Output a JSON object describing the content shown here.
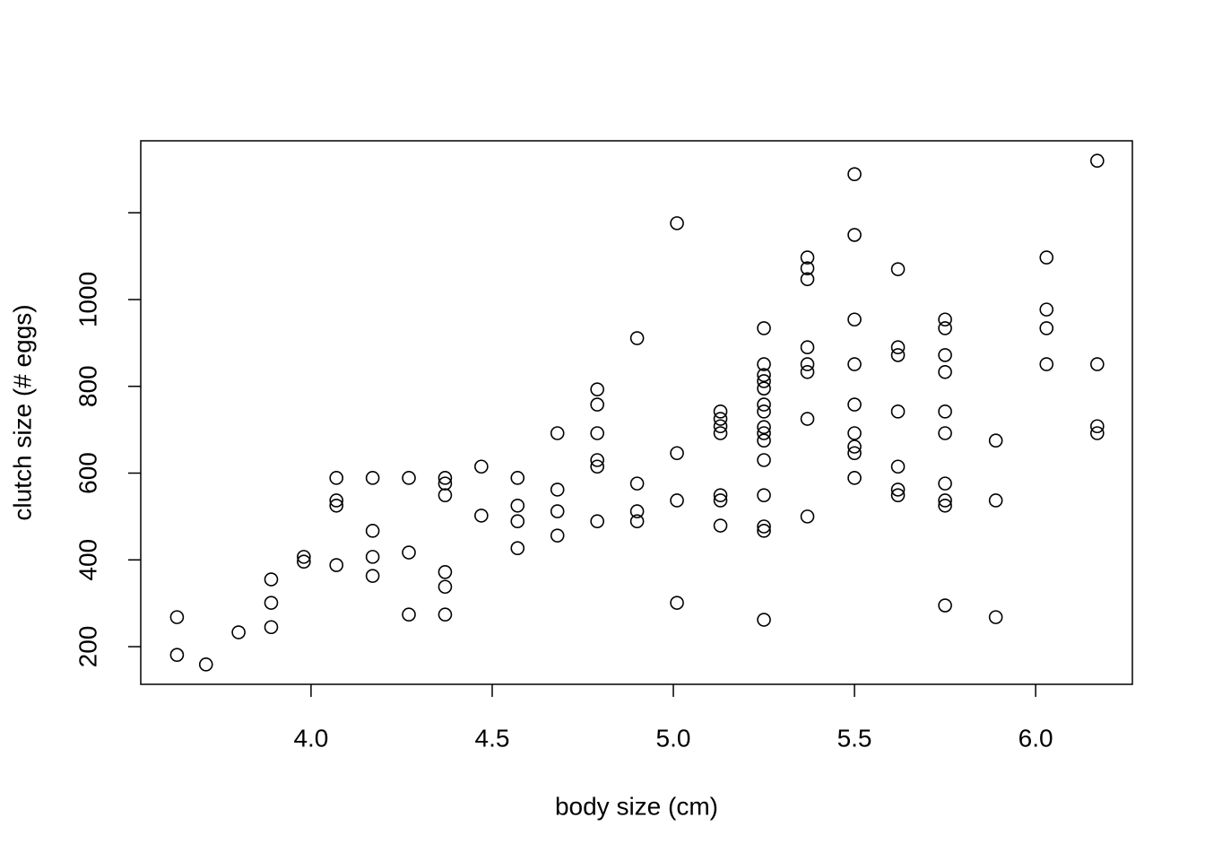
{
  "chart_data": {
    "type": "scatter",
    "x_label": "body size (cm)",
    "y_label": "clutch size (# eggs)",
    "xlim": [
      3.53,
      6.267
    ],
    "ylim": [
      113.2,
      1365.9
    ],
    "xticks": [
      {
        "value": 4,
        "label": "4.0"
      },
      {
        "value": 4.5,
        "label": "4.5"
      },
      {
        "value": 5,
        "label": "5.0"
      },
      {
        "value": 5.5,
        "label": "5.5"
      },
      {
        "value": 6,
        "label": "6.0"
      }
    ],
    "yticks": [
      200,
      400,
      600,
      800,
      1000,
      {
        "value": 1200,
        "label": null
      }
    ],
    "color": "#000000",
    "x": [
      3.63,
      3.63,
      3.71,
      3.8,
      3.89,
      3.89,
      3.89,
      3.98,
      3.98,
      4.07,
      4.07,
      4.07,
      4.07,
      4.17,
      4.17,
      4.17,
      4.17,
      4.27,
      4.27,
      4.27,
      4.37,
      4.37,
      4.37,
      4.37,
      4.37,
      4.37,
      4.47,
      4.47,
      4.57,
      4.57,
      4.57,
      4.57,
      4.68,
      4.68,
      4.68,
      4.68,
      4.79,
      4.79,
      4.79,
      4.79,
      4.79,
      4.79,
      4.9,
      4.9,
      4.9,
      4.9,
      5.01,
      5.01,
      5.01,
      5.01,
      5.13,
      5.13,
      5.13,
      5.13,
      5.13,
      5.13,
      5.13,
      5.25,
      5.25,
      5.25,
      5.25,
      5.25,
      5.25,
      5.25,
      5.25,
      5.25,
      5.25,
      5.25,
      5.25,
      5.25,
      5.25,
      5.25,
      5.37,
      5.37,
      5.37,
      5.37,
      5.37,
      5.37,
      5.37,
      5.37,
      5.5,
      5.5,
      5.5,
      5.5,
      5.5,
      5.5,
      5.5,
      5.5,
      5.5,
      5.62,
      5.62,
      5.62,
      5.62,
      5.62,
      5.62,
      5.62,
      5.75,
      5.75,
      5.75,
      5.75,
      5.75,
      5.75,
      5.75,
      5.75,
      5.75,
      5.75,
      5.89,
      5.89,
      5.89,
      6.03,
      6.03,
      6.03,
      6.03,
      6.17,
      6.17,
      6.17,
      6.17
    ],
    "values": [
      268,
      181,
      159,
      233,
      355,
      301,
      245,
      407,
      396,
      589,
      537,
      525,
      388,
      589,
      467,
      407,
      363,
      589,
      417,
      274,
      589,
      576,
      549,
      372,
      338,
      274,
      615,
      502,
      589,
      525,
      489,
      427,
      692,
      562,
      512,
      456,
      793,
      758,
      692,
      630,
      615,
      489,
      911,
      576,
      512,
      489,
      1176,
      646,
      537,
      301,
      742,
      725,
      708,
      692,
      549,
      537,
      479,
      934,
      851,
      826,
      812,
      795,
      758,
      742,
      706,
      692,
      675,
      630,
      549,
      477,
      467,
      262,
      1097,
      1072,
      1047,
      890,
      851,
      833,
      725,
      500,
      1289,
      1149,
      954,
      851,
      758,
      692,
      661,
      646,
      589,
      1070,
      890,
      872,
      742,
      615,
      562,
      549,
      954,
      934,
      872,
      833,
      742,
      692,
      576,
      537,
      525,
      295,
      675,
      537,
      268,
      1097,
      977,
      934,
      851,
      1320,
      851,
      708,
      692
    ]
  }
}
